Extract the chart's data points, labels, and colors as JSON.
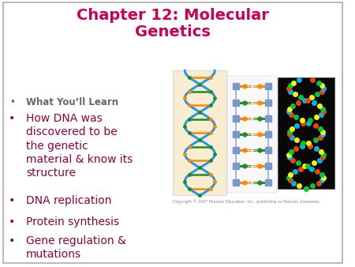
{
  "title_line1": "Chapter 12: Molecular",
  "title_line2": "Genetics",
  "title_color": "#CC0055",
  "title_fontsize": 14,
  "background_color": "#ffffff",
  "slide_bg": "#f0f0f0",
  "bullet_items": [
    {
      "text": "What You’ll Learn",
      "bold": true,
      "fontsize": 8.5,
      "color": "#666666",
      "italic": false
    },
    {
      "text": "How DNA was\ndiscovered to be\nthe genetic\nmaterial & know its\nstructure",
      "bold": false,
      "fontsize": 10,
      "color": "#990033",
      "italic": false
    },
    {
      "text": "DNA replication",
      "bold": false,
      "fontsize": 10,
      "color": "#990033",
      "italic": false
    },
    {
      "text": "Protein synthesis",
      "bold": false,
      "fontsize": 10,
      "color": "#990033",
      "italic": false
    },
    {
      "text": "Gene regulation &\nmutations",
      "bold": false,
      "fontsize": 10,
      "color": "#990033",
      "italic": false
    }
  ],
  "bullet_char": "•",
  "copyright_text": "Copyright © 2007 Pearson Education, Inc., publishing as Pearson Greenway",
  "copyright_fontsize": 3.5,
  "copyright_color": "#888888"
}
